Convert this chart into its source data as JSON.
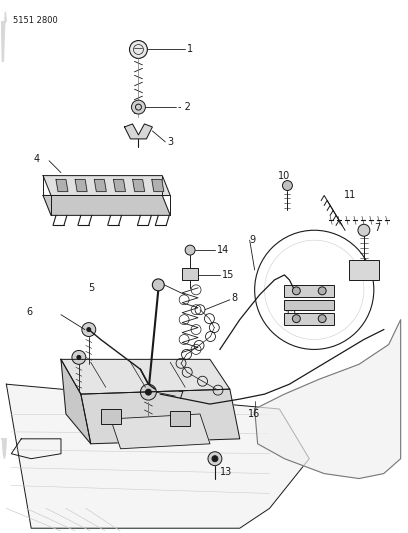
{
  "part_number": "5151 2800",
  "background_color": "#ffffff",
  "line_color": "#1a1a1a",
  "gray": "#777777",
  "light_gray": "#cccccc",
  "figsize": [
    4.08,
    5.33
  ],
  "dpi": 100,
  "label_fs": 7,
  "pn_fs": 6,
  "lw": 0.7
}
